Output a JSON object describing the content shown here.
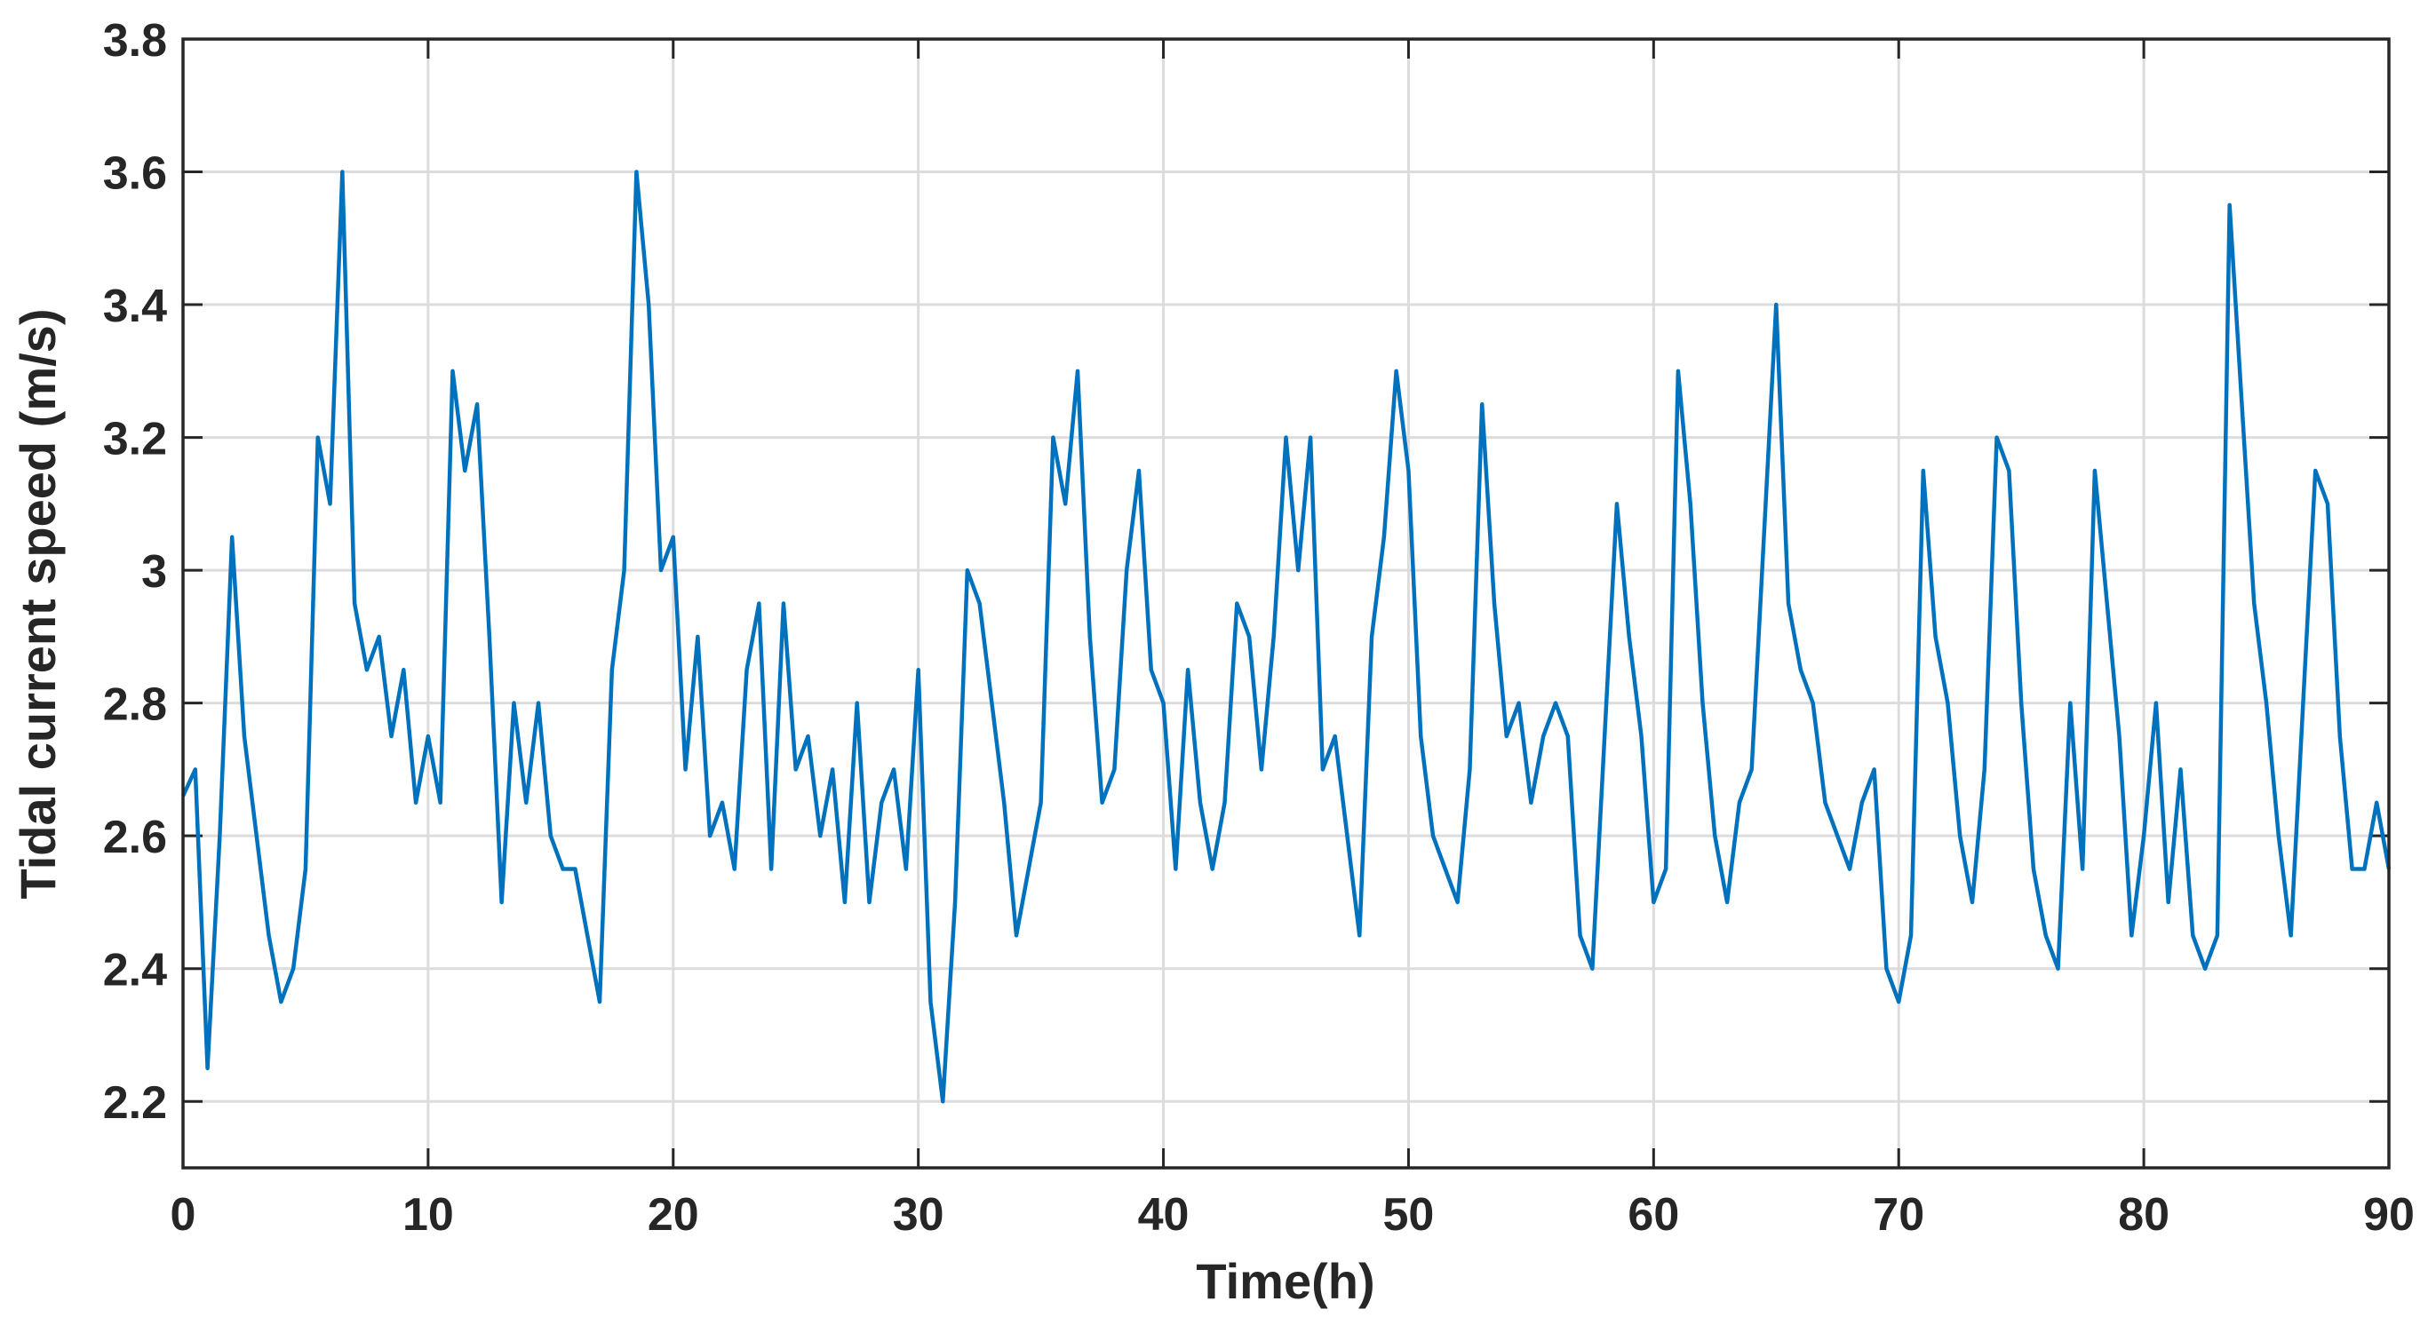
{
  "chart_data": {
    "type": "line",
    "x_label": "Time(h)",
    "y_label": "Tidal current speed (m/s)",
    "x": [
      0,
      0.5,
      1,
      1.5,
      2,
      2.5,
      3,
      3.5,
      4,
      4.5,
      5,
      5.5,
      6,
      6.5,
      7,
      7.5,
      8,
      8.5,
      9,
      9.5,
      10,
      10.5,
      11,
      11.5,
      12,
      12.5,
      13,
      13.5,
      14,
      14.5,
      15,
      15.5,
      16,
      16.5,
      17,
      17.5,
      18,
      18.5,
      19,
      19.5,
      20,
      20.5,
      21,
      21.5,
      22,
      22.5,
      23,
      23.5,
      24,
      24.5,
      25,
      25.5,
      26,
      26.5,
      27,
      27.5,
      28,
      28.5,
      29,
      29.5,
      30,
      30.5,
      31,
      31.5,
      32,
      32.5,
      33,
      33.5,
      34,
      34.5,
      35,
      35.5,
      36,
      36.5,
      37,
      37.5,
      38,
      38.5,
      39,
      39.5,
      40,
      40.5,
      41,
      41.5,
      42,
      42.5,
      43,
      43.5,
      44,
      44.5,
      45,
      45.5,
      46,
      46.5,
      47,
      47.5,
      48,
      48.5,
      49,
      49.5,
      50,
      50.5,
      51,
      51.5,
      52,
      52.5,
      53,
      53.5,
      54,
      54.5,
      55,
      55.5,
      56,
      56.5,
      57,
      57.5,
      58,
      58.5,
      59,
      59.5,
      60,
      60.5,
      61,
      61.5,
      62,
      62.5,
      63,
      63.5,
      64,
      64.5,
      65,
      65.5,
      66,
      66.5,
      67,
      67.5,
      68,
      68.5,
      69,
      69.5,
      70,
      70.5,
      71,
      71.5,
      72,
      72.5,
      73,
      73.5,
      74,
      74.5,
      75,
      75.5,
      76,
      76.5,
      77,
      77.5,
      78,
      78.5,
      79,
      79.5,
      80,
      80.5,
      81,
      81.5,
      82,
      82.5,
      83,
      83.5,
      84,
      84.5,
      85,
      85.5,
      86,
      86.5,
      87,
      87.5,
      88,
      88.5,
      89,
      89.5,
      90
    ],
    "series": [
      {
        "color": "#0072bd",
        "values": [
          2.66,
          2.7,
          2.25,
          2.6,
          3.05,
          2.75,
          2.6,
          2.45,
          2.35,
          2.4,
          2.55,
          3.2,
          3.1,
          3.6,
          2.95,
          2.85,
          2.9,
          2.75,
          2.85,
          2.65,
          2.75,
          2.65,
          3.3,
          3.15,
          3.25,
          2.9,
          2.5,
          2.8,
          2.65,
          2.8,
          2.6,
          2.55,
          2.55,
          2.45,
          2.35,
          2.85,
          3.0,
          3.6,
          3.4,
          3.0,
          3.05,
          2.7,
          2.9,
          2.6,
          2.65,
          2.55,
          2.85,
          2.95,
          2.55,
          2.95,
          2.7,
          2.75,
          2.6,
          2.7,
          2.5,
          2.8,
          2.5,
          2.65,
          2.7,
          2.55,
          2.85,
          2.35,
          2.2,
          2.5,
          3.0,
          2.95,
          2.8,
          2.65,
          2.45,
          2.55,
          2.65,
          3.2,
          3.1,
          3.3,
          2.9,
          2.65,
          2.7,
          3.0,
          3.15,
          2.85,
          2.8,
          2.55,
          2.85,
          2.65,
          2.55,
          2.65,
          2.95,
          2.9,
          2.7,
          2.9,
          3.2,
          3.0,
          3.2,
          2.7,
          2.75,
          2.6,
          2.45,
          2.9,
          3.05,
          3.3,
          3.15,
          2.75,
          2.6,
          2.55,
          2.5,
          2.7,
          3.25,
          2.95,
          2.75,
          2.8,
          2.65,
          2.75,
          2.8,
          2.75,
          2.45,
          2.4,
          2.75,
          3.1,
          2.9,
          2.75,
          2.5,
          2.55,
          3.3,
          3.1,
          2.8,
          2.6,
          2.5,
          2.65,
          2.7,
          3.05,
          3.4,
          2.95,
          2.85,
          2.8,
          2.65,
          2.6,
          2.55,
          2.65,
          2.7,
          2.4,
          2.35,
          2.45,
          3.15,
          2.9,
          2.8,
          2.6,
          2.5,
          2.7,
          3.2,
          3.15,
          2.8,
          2.55,
          2.45,
          2.4,
          2.8,
          2.55,
          3.15,
          2.95,
          2.75,
          2.45,
          2.6,
          2.8,
          2.5,
          2.7,
          2.45,
          2.4,
          2.45,
          3.55,
          3.25,
          2.95,
          2.8,
          2.6,
          2.45,
          2.8,
          3.15,
          3.1,
          2.75,
          2.55,
          2.55,
          2.65,
          2.55
        ]
      }
    ],
    "xlim": [
      0,
      90
    ],
    "xticks": [
      0,
      10,
      20,
      30,
      40,
      50,
      60,
      70,
      80,
      90
    ],
    "ylim": [
      2.1,
      3.8
    ],
    "yticks": [
      2.2,
      2.4,
      2.6,
      2.8,
      3,
      3.2,
      3.4,
      3.6,
      3.8
    ],
    "grid": true
  }
}
